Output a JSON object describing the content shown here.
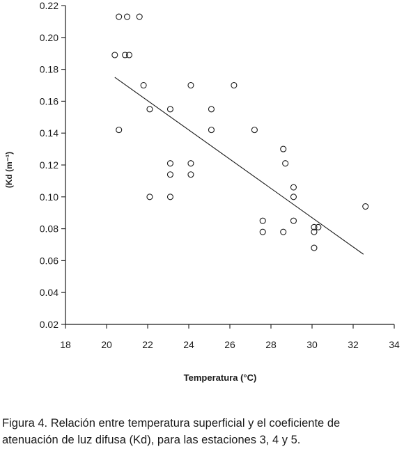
{
  "chart_data": {
    "type": "scatter",
    "xlabel": "Temperatura (°C)",
    "ylabel": "(Kd (m⁻¹)",
    "xlim": [
      18,
      34
    ],
    "ylim": [
      0.02,
      0.22
    ],
    "xticks": [
      "18",
      "20",
      "22",
      "24",
      "26",
      "28",
      "30",
      "32",
      "34"
    ],
    "yticks": [
      "0.02",
      "0.04",
      "0.06",
      "0.08",
      "0.10",
      "0.12",
      "0.14",
      "0.16",
      "0.18",
      "0.20",
      "0.22"
    ],
    "points": [
      {
        "x": 20.4,
        "y": 0.189
      },
      {
        "x": 20.6,
        "y": 0.213
      },
      {
        "x": 21.0,
        "y": 0.213
      },
      {
        "x": 21.6,
        "y": 0.213
      },
      {
        "x": 20.9,
        "y": 0.189
      },
      {
        "x": 21.1,
        "y": 0.189
      },
      {
        "x": 20.6,
        "y": 0.142
      },
      {
        "x": 21.8,
        "y": 0.17
      },
      {
        "x": 22.1,
        "y": 0.155
      },
      {
        "x": 22.1,
        "y": 0.1
      },
      {
        "x": 23.1,
        "y": 0.155
      },
      {
        "x": 23.1,
        "y": 0.121
      },
      {
        "x": 23.1,
        "y": 0.114
      },
      {
        "x": 23.1,
        "y": 0.1
      },
      {
        "x": 24.1,
        "y": 0.17
      },
      {
        "x": 24.1,
        "y": 0.121
      },
      {
        "x": 24.1,
        "y": 0.114
      },
      {
        "x": 25.1,
        "y": 0.155
      },
      {
        "x": 25.1,
        "y": 0.142
      },
      {
        "x": 26.2,
        "y": 0.17
      },
      {
        "x": 27.2,
        "y": 0.142
      },
      {
        "x": 27.6,
        "y": 0.085
      },
      {
        "x": 27.6,
        "y": 0.078
      },
      {
        "x": 28.6,
        "y": 0.13
      },
      {
        "x": 28.7,
        "y": 0.121
      },
      {
        "x": 28.6,
        "y": 0.078
      },
      {
        "x": 29.1,
        "y": 0.106
      },
      {
        "x": 29.1,
        "y": 0.1
      },
      {
        "x": 29.1,
        "y": 0.085
      },
      {
        "x": 30.1,
        "y": 0.081
      },
      {
        "x": 30.1,
        "y": 0.078
      },
      {
        "x": 30.1,
        "y": 0.068
      },
      {
        "x": 30.3,
        "y": 0.081
      },
      {
        "x": 32.6,
        "y": 0.094
      }
    ],
    "trendline": {
      "x": [
        20.4,
        32.5
      ],
      "y": [
        0.175,
        0.064
      ]
    },
    "grid": false,
    "marker": "open-circle"
  },
  "caption": {
    "line1": "Figura 4. Relación entre temperatura superficial y el coeficiente de",
    "line2": "atenuación de luz difusa (Kd), para las estaciones 3, 4 y 5."
  },
  "colors": {
    "ink": "#1a1a1a",
    "background": "#ffffff"
  }
}
